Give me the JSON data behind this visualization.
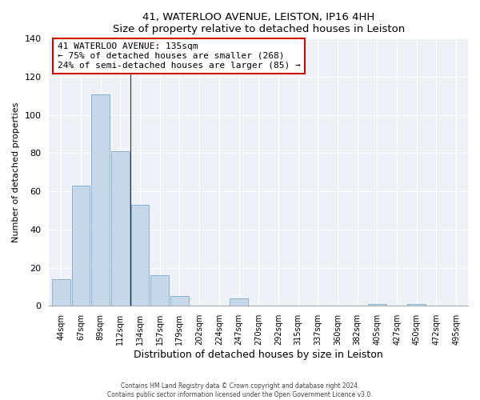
{
  "title": "41, WATERLOO AVENUE, LEISTON, IP16 4HH",
  "subtitle": "Size of property relative to detached houses in Leiston",
  "xlabel": "Distribution of detached houses by size in Leiston",
  "ylabel": "Number of detached properties",
  "bar_labels": [
    "44sqm",
    "67sqm",
    "89sqm",
    "112sqm",
    "134sqm",
    "157sqm",
    "179sqm",
    "202sqm",
    "224sqm",
    "247sqm",
    "270sqm",
    "292sqm",
    "315sqm",
    "337sqm",
    "360sqm",
    "382sqm",
    "405sqm",
    "427sqm",
    "450sqm",
    "472sqm",
    "495sqm"
  ],
  "bar_values": [
    14,
    63,
    111,
    81,
    53,
    16,
    5,
    0,
    0,
    4,
    0,
    0,
    0,
    0,
    0,
    0,
    1,
    0,
    1,
    0,
    0
  ],
  "bar_color": "#c8d8eb",
  "bar_edge_color": "#7aaacc",
  "vline_color": "#333333",
  "vline_x_index": 3.5,
  "annotation_line1": "41 WATERLOO AVENUE: 135sqm",
  "annotation_line2": "← 75% of detached houses are smaller (268)",
  "annotation_line3": "24% of semi-detached houses are larger (85) →",
  "annotation_box_edge_color": "#cc0000",
  "ylim": [
    0,
    140
  ],
  "yticks": [
    0,
    20,
    40,
    60,
    80,
    100,
    120,
    140
  ],
  "footer1": "Contains HM Land Registry data © Crown copyright and database right 2024.",
  "footer2": "Contains public sector information licensed under the Open Government Licence v3.0."
}
